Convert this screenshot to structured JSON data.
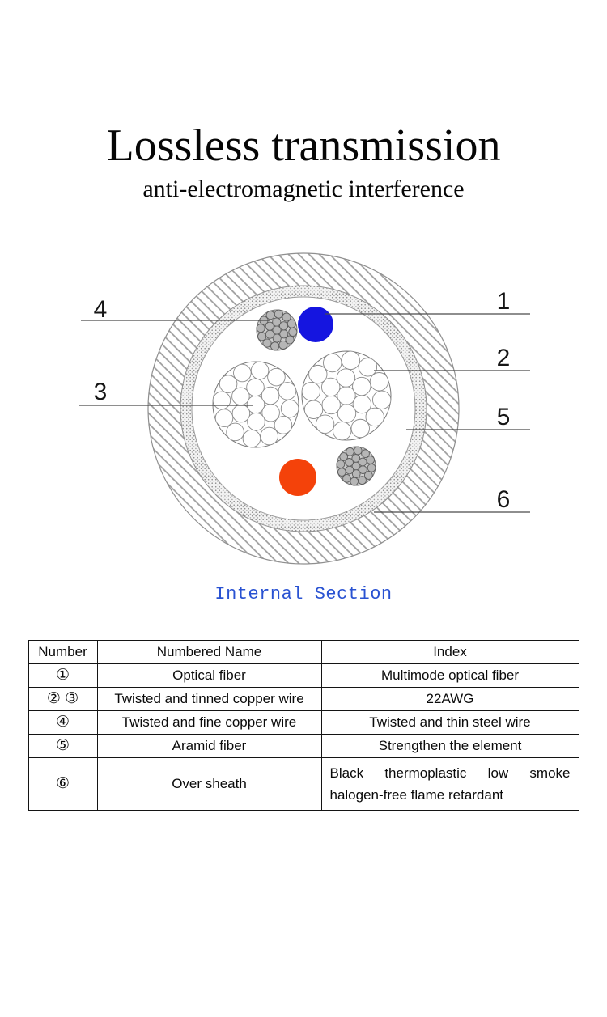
{
  "header": {
    "title": "Lossless transmission",
    "subtitle": "anti-electromagnetic interference"
  },
  "diagram": {
    "caption": "Internal Section",
    "labels": [
      "1",
      "2",
      "3",
      "4",
      "5",
      "6"
    ],
    "colors": {
      "optical_fiber_blue": "#1515e0",
      "optical_fiber_orange": "#f4420a",
      "caption_blue": "#2952d2"
    }
  },
  "table": {
    "headers": [
      "Number",
      "Numbered Name",
      "Index"
    ],
    "rows": [
      {
        "number": "①",
        "name": "Optical fiber",
        "index": "Multimode optical fiber"
      },
      {
        "number": "② ③",
        "name": "Twisted and tinned copper wire",
        "index": "22AWG"
      },
      {
        "number": "④",
        "name": "Twisted and fine copper wire",
        "index": "Twisted and thin steel wire"
      },
      {
        "number": "⑤",
        "name": "Aramid fiber",
        "index": "Strengthen the element"
      },
      {
        "number": "⑥",
        "name": "Over sheath",
        "index": "Black thermoplastic low smoke halogen-free flame retardant"
      }
    ]
  }
}
